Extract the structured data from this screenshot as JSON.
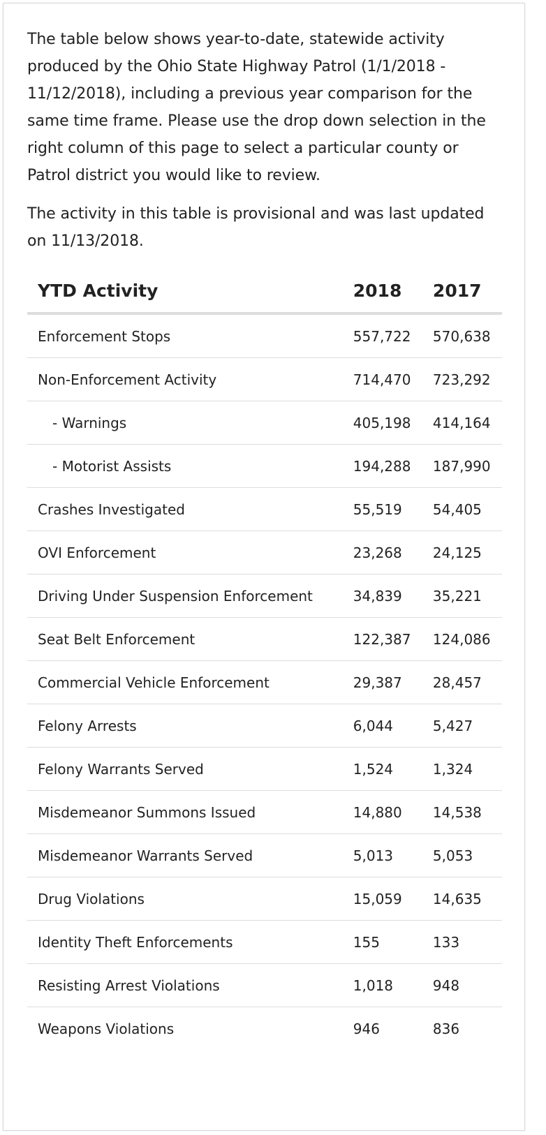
{
  "intro": {
    "paragraph1": "The table below shows year-to-date, statewide activity produced by the Ohio State Highway Patrol (1/1/2018 - 11/12/2018), including a previous year comparison for the same time frame. Please use the drop down selection in the right column of this page to select a particular county or Patrol district you would like to review.",
    "paragraph2": "The activity in this table is provisional and was last updated on 11/13/2018."
  },
  "table": {
    "headers": [
      "YTD Activity",
      "2018",
      "2017"
    ],
    "rows": [
      {
        "label": "Enforcement Stops",
        "y2018": "557,722",
        "y2017": "570,638"
      },
      {
        "label": "Non-Enforcement Activity",
        "y2018": "714,470",
        "y2017": "723,292"
      },
      {
        "label": "- Warnings",
        "y2018": "405,198",
        "y2017": "414,164"
      },
      {
        "label": "- Motorist Assists",
        "y2018": "194,288",
        "y2017": "187,990"
      },
      {
        "label": "Crashes Investigated",
        "y2018": "55,519",
        "y2017": "54,405"
      },
      {
        "label": "OVI Enforcement",
        "y2018": "23,268",
        "y2017": "24,125"
      },
      {
        "label": "Driving Under Suspension Enforcement",
        "y2018": "34,839",
        "y2017": "35,221"
      },
      {
        "label": "Seat Belt Enforcement",
        "y2018": "122,387",
        "y2017": "124,086"
      },
      {
        "label": "Commercial Vehicle Enforcement",
        "y2018": "29,387",
        "y2017": "28,457"
      },
      {
        "label": "Felony Arrests",
        "y2018": "6,044",
        "y2017": "5,427"
      },
      {
        "label": "Felony Warrants Served",
        "y2018": "1,524",
        "y2017": "1,324"
      },
      {
        "label": "Misdemeanor Summons Issued",
        "y2018": "14,880",
        "y2017": "14,538"
      },
      {
        "label": "Misdemeanor Warrants Served",
        "y2018": "5,013",
        "y2017": "5,053"
      },
      {
        "label": "Drug Violations",
        "y2018": "15,059",
        "y2017": "14,635"
      },
      {
        "label": "Identity Theft Enforcements",
        "y2018": "155",
        "y2017": "133"
      },
      {
        "label": "Resisting Arrest Violations",
        "y2018": "1,018",
        "y2017": "948"
      },
      {
        "label": "Weapons Violations",
        "y2018": "946",
        "y2017": "836"
      }
    ]
  }
}
